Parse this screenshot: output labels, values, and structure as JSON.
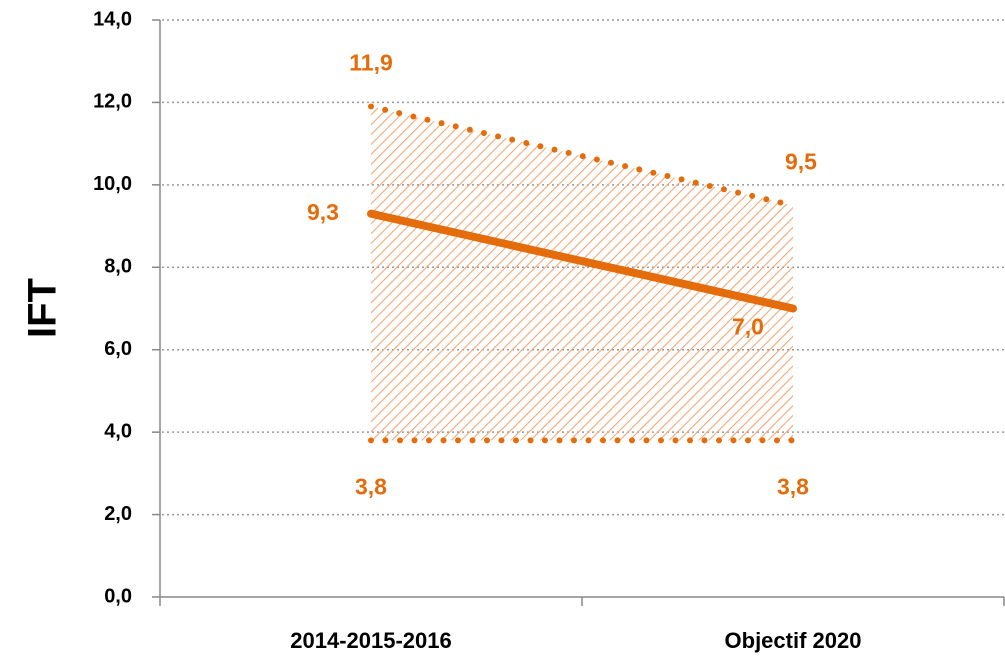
{
  "chart_data": {
    "type": "line",
    "ylabel": "IFT",
    "categories": [
      "2014-2015-2016",
      "Objectif 2020"
    ],
    "series": [
      {
        "color": "#e46c0a",
        "style": "dotted",
        "values": [
          11.9,
          9.5
        ],
        "value_labels": [
          "11,9",
          "9,5"
        ]
      },
      {
        "color": "#e46c0a",
        "style": "solid",
        "values": [
          9.3,
          7.0
        ],
        "value_labels": [
          "9,3",
          "7,0"
        ]
      },
      {
        "color": "#e46c0a",
        "style": "dotted",
        "values": [
          3.8,
          3.8
        ],
        "value_labels": [
          "3,8",
          "3,8"
        ]
      }
    ],
    "ylim": [
      0,
      14
    ],
    "yticks": [
      {
        "value": 0,
        "label": "0,0"
      },
      {
        "value": 2,
        "label": "2,0"
      },
      {
        "value": 4,
        "label": "4,0"
      },
      {
        "value": 6,
        "label": "6,0"
      },
      {
        "value": 8,
        "label": "8,0"
      },
      {
        "value": 10,
        "label": "10,0"
      },
      {
        "value": 12,
        "label": "12,0"
      },
      {
        "value": 14,
        "label": "14,0"
      }
    ],
    "grid": true
  }
}
